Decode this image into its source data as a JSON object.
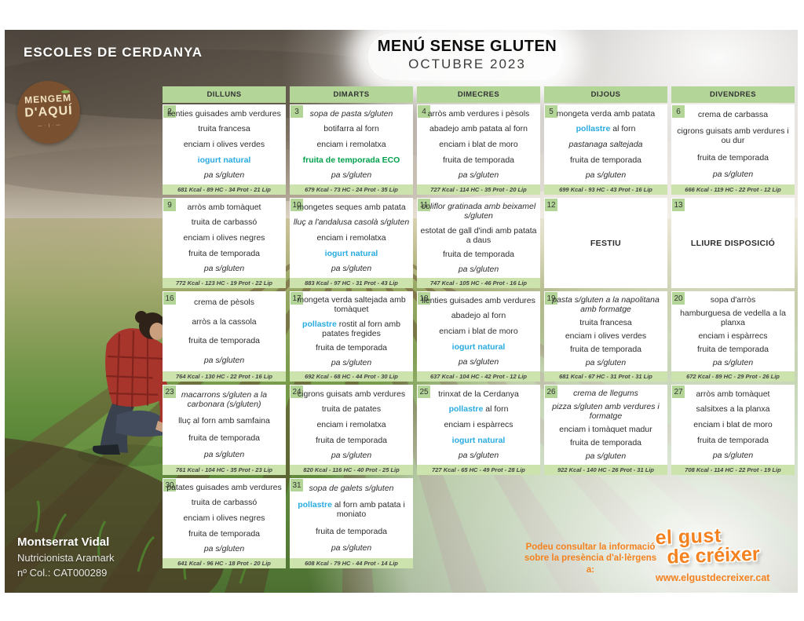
{
  "header": {
    "school": "ESCOLES DE CERDANYA",
    "title": "MENÚ SENSE GLUTEN",
    "subtitle": "OCTUBRE 2023"
  },
  "logo": {
    "line1": "MENGEM",
    "line2": "D'AQUÍ",
    "tagline": "— · | · —"
  },
  "weekdays": [
    "DILLUNS",
    "DIMARTS",
    "DIMECRES",
    "DIJOUS",
    "DIVENDRES"
  ],
  "colors": {
    "header_green": "#b3d698",
    "footer_green": "#cce3ad",
    "highlight_blue": "#29abe2",
    "eco_green": "#00a14b",
    "brand_orange": "#f58220",
    "logo_brown": "#7a5130"
  },
  "weeks": [
    [
      {
        "day": 2,
        "items": [
          [
            {
              "t": "llenties guisades amb verdures"
            }
          ],
          [
            {
              "t": "truita francesa"
            }
          ],
          [
            {
              "t": "enciam i olives verdes"
            }
          ],
          [
            {
              "t": "iogurt natural",
              "s": "blue"
            }
          ],
          [
            {
              "t": "pa s/gluten",
              "s": "it"
            }
          ]
        ],
        "footer": "681 Kcal - 89 HC - 34 Prot - 21 Lip"
      },
      {
        "day": 3,
        "items": [
          [
            {
              "t": "sopa de pasta s/gluten",
              "s": "it"
            }
          ],
          [
            {
              "t": "botifarra al forn"
            }
          ],
          [
            {
              "t": "enciam i remolatxa"
            }
          ],
          [
            {
              "t": "fruita de temporada ECO",
              "s": "eco"
            }
          ],
          [
            {
              "t": "pa s/gluten",
              "s": "it"
            }
          ]
        ],
        "footer": "679 Kcal - 73 HC - 24 Prot - 35 Lip"
      },
      {
        "day": 4,
        "items": [
          [
            {
              "t": "arròs amb verdures i pèsols"
            }
          ],
          [
            {
              "t": "abadejo amb patata al forn"
            }
          ],
          [
            {
              "t": "enciam i blat de moro"
            }
          ],
          [
            {
              "t": "fruita de temporada"
            }
          ],
          [
            {
              "t": "pa s/gluten",
              "s": "it"
            }
          ]
        ],
        "footer": "727 Kcal - 114 HC - 35 Prot - 20 Lip"
      },
      {
        "day": 5,
        "items": [
          [
            {
              "t": "mongeta verda amb patata"
            }
          ],
          [
            {
              "t": "pollastre",
              "s": "blue"
            },
            {
              "t": " al forn"
            }
          ],
          [
            {
              "t": "pastanaga saltejada",
              "s": "it"
            }
          ],
          [
            {
              "t": "fruita de temporada"
            }
          ],
          [
            {
              "t": "pa s/gluten",
              "s": "it"
            }
          ]
        ],
        "footer": "699 Kcal - 93 HC - 43 Prot - 16 Lip"
      },
      {
        "day": 6,
        "items": [
          [
            {
              "t": "crema de carbassa"
            }
          ],
          [
            {
              "t": "cigrons guisats amb verdures i ou dur"
            }
          ],
          [
            {
              "t": "fruita de temporada"
            }
          ],
          [
            {
              "t": "pa s/gluten",
              "s": "it"
            }
          ]
        ],
        "footer": "666 Kcal - 119 HC - 22 Prot - 12 Lip"
      }
    ],
    [
      {
        "day": 9,
        "items": [
          [
            {
              "t": "arròs amb tomàquet"
            }
          ],
          [
            {
              "t": "truita de carbassó"
            }
          ],
          [
            {
              "t": "enciam i olives negres"
            }
          ],
          [
            {
              "t": "fruita de temporada"
            }
          ],
          [
            {
              "t": "pa s/gluten",
              "s": "it"
            }
          ]
        ],
        "footer": "772 Kcal - 123 HC - 19 Prot - 22 Lip"
      },
      {
        "day": 10,
        "items": [
          [
            {
              "t": "mongetes seques amb patata"
            }
          ],
          [
            {
              "t": "lluç a l'andalusa casolà s/gluten",
              "s": "it"
            }
          ],
          [
            {
              "t": "enciam i remolatxa"
            }
          ],
          [
            {
              "t": "iogurt natural",
              "s": "blue"
            }
          ],
          [
            {
              "t": "pa s/gluten",
              "s": "it"
            }
          ]
        ],
        "footer": "883 Kcal - 97 HC - 31 Prot - 43 Lip"
      },
      {
        "day": 11,
        "items": [
          [
            {
              "t": "coliflor gratinada amb beixamel s/gluten",
              "s": "it"
            }
          ],
          [
            {
              "t": "estotat de gall d'indi amb patata a daus"
            }
          ],
          [
            {
              "t": "fruita de temporada"
            }
          ],
          [
            {
              "t": "pa s/gluten",
              "s": "it"
            }
          ]
        ],
        "footer": "747 Kcal - 105 HC - 46 Prot - 16 Lip"
      },
      {
        "day": 12,
        "special": "FESTIU"
      },
      {
        "day": 13,
        "special": "LLIURE DISPOSICIÓ"
      }
    ],
    [
      {
        "day": 16,
        "items": [
          [
            {
              "t": "crema de pèsols"
            }
          ],
          [
            {
              "t": "arròs a la cassola"
            }
          ],
          [
            {
              "t": "fruita de temporada"
            }
          ],
          [
            {
              "t": "pa s/gluten",
              "s": "it"
            }
          ]
        ],
        "footer": "764 Kcal - 130 HC - 22 Prot - 16 Lip"
      },
      {
        "day": 17,
        "items": [
          [
            {
              "t": "mongeta verda saltejada amb tomàquet"
            }
          ],
          [
            {
              "t": "pollastre",
              "s": "blue"
            },
            {
              "t": " rostit al forn amb patates fregides"
            }
          ],
          [
            {
              "t": "fruita de temporada"
            }
          ],
          [
            {
              "t": "pa s/gluten",
              "s": "it"
            }
          ]
        ],
        "footer": "692 Kcal - 68 HC - 44 Prot - 30 Lip"
      },
      {
        "day": 18,
        "items": [
          [
            {
              "t": "llenties guisades amb verdures"
            }
          ],
          [
            {
              "t": "abadejo al forn"
            }
          ],
          [
            {
              "t": "enciam i blat de moro"
            }
          ],
          [
            {
              "t": "iogurt natural",
              "s": "blue"
            }
          ],
          [
            {
              "t": "pa s/gluten",
              "s": "it"
            }
          ]
        ],
        "footer": "637 Kcal - 104 HC - 42 Prot - 12 Lip"
      },
      {
        "day": 19,
        "items": [
          [
            {
              "t": "pasta s/gluten a la napolitana amb formatge",
              "s": "it"
            }
          ],
          [
            {
              "t": "truita francesa"
            }
          ],
          [
            {
              "t": "enciam i olives verdes"
            }
          ],
          [
            {
              "t": "fruita de temporada"
            }
          ],
          [
            {
              "t": "pa s/gluten",
              "s": "it"
            }
          ]
        ],
        "footer": "681 Kcal - 67 HC - 31 Prot - 31 Lip"
      },
      {
        "day": 20,
        "items": [
          [
            {
              "t": "sopa d'arròs"
            }
          ],
          [
            {
              "t": "hamburguesa de vedella a la planxa"
            }
          ],
          [
            {
              "t": "enciam i espàrrecs"
            }
          ],
          [
            {
              "t": "fruita de temporada"
            }
          ],
          [
            {
              "t": "pa s/gluten",
              "s": "it"
            }
          ]
        ],
        "footer": "672 Kcal - 89 HC - 29 Prot - 26 Lip"
      }
    ],
    [
      {
        "day": 23,
        "items": [
          [
            {
              "t": "macarrons s/gluten a la carbonara (s/gluten)",
              "s": "it"
            }
          ],
          [
            {
              "t": "lluç al forn amb samfaina"
            }
          ],
          [
            {
              "t": "fruita de temporada"
            }
          ],
          [
            {
              "t": "pa s/gluten",
              "s": "it"
            }
          ]
        ],
        "footer": "761 Kcal - 104 HC - 35 Prot - 23 Lip"
      },
      {
        "day": 24,
        "items": [
          [
            {
              "t": "cigrons guisats amb verdures"
            }
          ],
          [
            {
              "t": "truita de patates"
            }
          ],
          [
            {
              "t": "enciam i remolatxa"
            }
          ],
          [
            {
              "t": "fruita de temporada"
            }
          ],
          [
            {
              "t": "pa s/gluten",
              "s": "it"
            }
          ]
        ],
        "footer": "820 Kcal - 116 HC - 40 Prot - 25 Lip"
      },
      {
        "day": 25,
        "items": [
          [
            {
              "t": "trinxat de la Cerdanya"
            }
          ],
          [
            {
              "t": "pollastre",
              "s": "blue"
            },
            {
              "t": " al forn"
            }
          ],
          [
            {
              "t": "enciam i espàrrecs"
            }
          ],
          [
            {
              "t": "iogurt natural",
              "s": "blue"
            }
          ],
          [
            {
              "t": "pa s/gluten",
              "s": "it"
            }
          ]
        ],
        "footer": "727 Kcal - 65 HC - 49 Prot - 28 Lip"
      },
      {
        "day": 26,
        "items": [
          [
            {
              "t": "crema de llegums",
              "s": "it"
            }
          ],
          [
            {
              "t": "pizza s/gluten amb verdures i formatge",
              "s": "it"
            }
          ],
          [
            {
              "t": "enciam i tomàquet madur"
            }
          ],
          [
            {
              "t": "fruita de temporada"
            }
          ],
          [
            {
              "t": "pa s/gluten",
              "s": "it"
            }
          ]
        ],
        "footer": "922 Kcal - 140 HC - 26 Prot - 31 Lip"
      },
      {
        "day": 27,
        "items": [
          [
            {
              "t": "arròs amb tomàquet"
            }
          ],
          [
            {
              "t": "salsitxes a la planxa"
            }
          ],
          [
            {
              "t": "enciam i blat de moro"
            }
          ],
          [
            {
              "t": "fruita de temporada"
            }
          ],
          [
            {
              "t": "pa s/gluten",
              "s": "it"
            }
          ]
        ],
        "footer": "708 Kcal - 114 HC - 22 Prot - 19 Lip"
      }
    ],
    [
      {
        "day": 30,
        "items": [
          [
            {
              "t": "patates guisades amb verdures"
            }
          ],
          [
            {
              "t": "truita de carbassó"
            }
          ],
          [
            {
              "t": "enciam i olives negres"
            }
          ],
          [
            {
              "t": "fruita de temporada"
            }
          ],
          [
            {
              "t": "pa s/gluten",
              "s": "it"
            }
          ]
        ],
        "footer": "641 Kcal - 96 HC - 18 Prot - 20 Lip"
      },
      {
        "day": 31,
        "items": [
          [
            {
              "t": "sopa de galets s/gluten",
              "s": "it"
            }
          ],
          [
            {
              "t": "pollastre",
              "s": "blue"
            },
            {
              "t": " al forn amb patata i moniato"
            }
          ],
          [
            {
              "t": "fruita de temporada"
            }
          ],
          [
            {
              "t": "pa s/gluten",
              "s": "it"
            }
          ]
        ],
        "footer": "608 Kcal - 79 HC - 44 Prot - 14 Lip"
      },
      null,
      null,
      null
    ]
  ],
  "credits": {
    "name": "Montserrat Vidal",
    "role": "Nutricionista Aramark",
    "license": "nº Col.: CAT000289"
  },
  "allergen_note": "Podeu consultar la informació sobre la presència d'al·lèrgens a:",
  "brand": {
    "logo_line1": "el gust",
    "logo_line2": "de créixer",
    "url": "www.elgustdecreixer.cat"
  }
}
